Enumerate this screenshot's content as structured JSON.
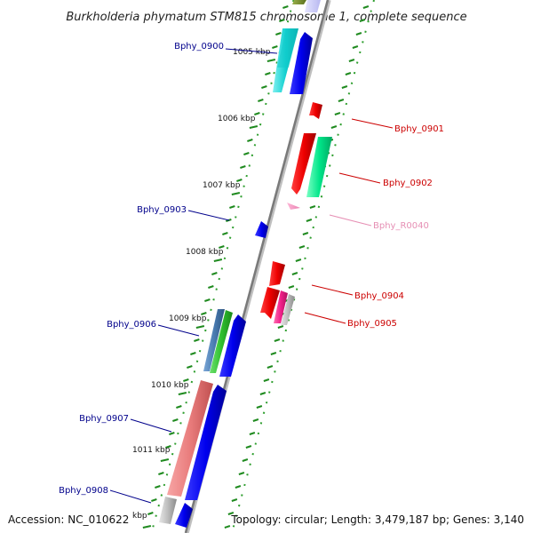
{
  "title": "Burkholderia phymatum STM815 chromosome 1, complete sequence",
  "footer": {
    "accession": "Accession: NC_010622",
    "topology": "Topology: circular; Length: 3,479,187 bp; Genes: 3,140"
  },
  "ticks": [
    "1005 kbp",
    "1006 kbp",
    "1007 kbp",
    "1008 kbp",
    "1009 kbp",
    "1010 kbp",
    "1011 kbp",
    "kbp"
  ],
  "genes": [
    {
      "label": "Bphy_0900",
      "color": "#00008b"
    },
    {
      "label": "Bphy_0901",
      "color": "#cc0000"
    },
    {
      "label": "Bphy_0902",
      "color": "#cc0000"
    },
    {
      "label": "Bphy_0903",
      "color": "#00008b"
    },
    {
      "label": "Bphy_R0040",
      "color": "#e68fb4"
    },
    {
      "label": "Bphy_0904",
      "color": "#cc0000"
    },
    {
      "label": "Bphy_0905",
      "color": "#cc0000"
    },
    {
      "label": "Bphy_0906",
      "color": "#00008b"
    },
    {
      "label": "Bphy_0907",
      "color": "#00008b"
    },
    {
      "label": "Bphy_0908",
      "color": "#00008b"
    }
  ]
}
